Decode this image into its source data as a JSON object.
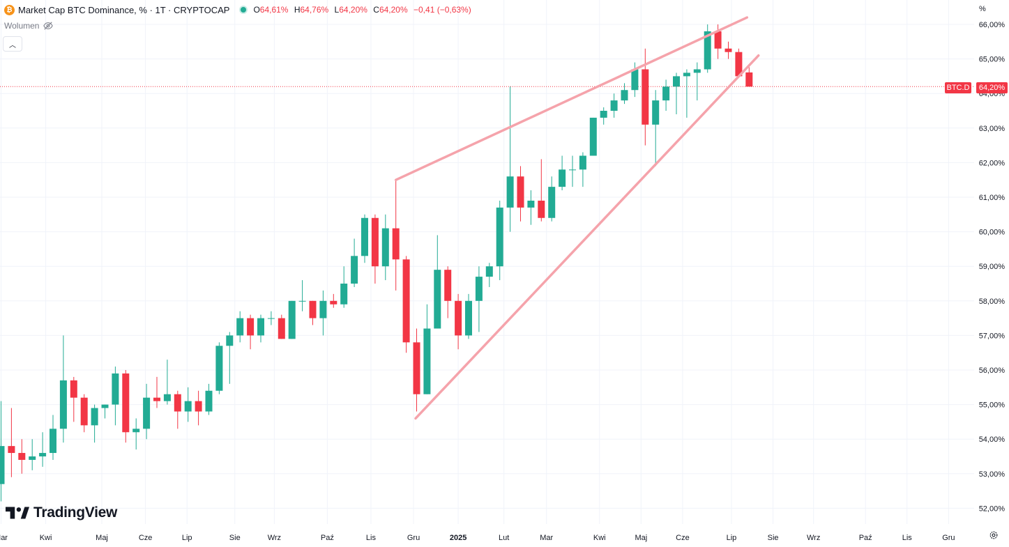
{
  "legend": {
    "symbol_icon": "bitcoin-coin-icon",
    "title": "Market Cap BTC Dominance, % · 1T · CRYPTOCAP",
    "open_key": "O",
    "open": "64,61%",
    "high_key": "H",
    "high": "64,76%",
    "low_key": "L",
    "low": "64,20%",
    "close_key": "C",
    "close": "64,20%",
    "change": "−0,41 (−0,63%)"
  },
  "volume_label": "Wolumen",
  "unit_label": "%",
  "brand": "TradingView",
  "price_tag": {
    "symbol": "BTC.D",
    "value": "64,20%"
  },
  "colors": {
    "up": "#22ab94",
    "down": "#f23645",
    "trendline": "#f5a3ab",
    "grid": "#f0f3fa",
    "axis_text": "#131722"
  },
  "chart_data": {
    "type": "candlestick",
    "title": "Market Cap BTC Dominance, % · 1T · CRYPTOCAP",
    "interval": "1 week",
    "ylim": [
      51.8,
      66.2
    ],
    "y_ticks": [
      52,
      53,
      54,
      55,
      56,
      57,
      58,
      59,
      60,
      61,
      62,
      63,
      64,
      65,
      66
    ],
    "y_tick_labels": [
      "52,00%",
      "53,00%",
      "54,00%",
      "55,00%",
      "56,00%",
      "57,00%",
      "58,00%",
      "59,00%",
      "60,00%",
      "61,00%",
      "62,00%",
      "63,00%",
      "64,00%",
      "65,00%",
      "66,00%"
    ],
    "x_ticks": [
      {
        "label": "Mar",
        "i": 0
      },
      {
        "label": "Kwi",
        "i": 4.3
      },
      {
        "label": "Maj",
        "i": 9.7
      },
      {
        "label": "Cze",
        "i": 13.9
      },
      {
        "label": "Lip",
        "i": 17.9
      },
      {
        "label": "Sie",
        "i": 22.5
      },
      {
        "label": "Wrz",
        "i": 26.3
      },
      {
        "label": "Paź",
        "i": 31.4
      },
      {
        "label": "Lis",
        "i": 35.6
      },
      {
        "label": "Gru",
        "i": 39.7
      },
      {
        "label": "2025",
        "i": 44
      },
      {
        "label": "Lut",
        "i": 48.4
      },
      {
        "label": "Mar",
        "i": 52.5
      },
      {
        "label": "Kwi",
        "i": 57.6
      },
      {
        "label": "Maj",
        "i": 61.6
      },
      {
        "label": "Cze",
        "i": 65.6
      },
      {
        "label": "Lip",
        "i": 70.3
      },
      {
        "label": "Sie",
        "i": 74.3
      },
      {
        "label": "Wrz",
        "i": 78.2
      },
      {
        "label": "Paź",
        "i": 83.2
      },
      {
        "label": "Lis",
        "i": 87.2
      },
      {
        "label": "Gru",
        "i": 91.2
      }
    ],
    "candles": [
      {
        "o": 52.7,
        "h": 55.1,
        "l": 52.2,
        "c": 53.8
      },
      {
        "o": 53.8,
        "h": 54.9,
        "l": 52.9,
        "c": 53.6
      },
      {
        "o": 53.6,
        "h": 54.0,
        "l": 53.0,
        "c": 53.4
      },
      {
        "o": 53.4,
        "h": 54.0,
        "l": 53.1,
        "c": 53.5
      },
      {
        "o": 53.5,
        "h": 54.2,
        "l": 53.2,
        "c": 53.6
      },
      {
        "o": 53.6,
        "h": 54.7,
        "l": 53.4,
        "c": 54.3
      },
      {
        "o": 54.3,
        "h": 57.0,
        "l": 53.9,
        "c": 55.7
      },
      {
        "o": 55.7,
        "h": 55.8,
        "l": 54.5,
        "c": 55.2
      },
      {
        "o": 55.2,
        "h": 55.3,
        "l": 54.2,
        "c": 54.4
      },
      {
        "o": 54.4,
        "h": 55.0,
        "l": 53.9,
        "c": 54.9
      },
      {
        "o": 54.9,
        "h": 55.0,
        "l": 54.6,
        "c": 55.0
      },
      {
        "o": 55.0,
        "h": 56.1,
        "l": 54.4,
        "c": 55.9
      },
      {
        "o": 55.9,
        "h": 56.0,
        "l": 53.9,
        "c": 54.2
      },
      {
        "o": 54.2,
        "h": 54.6,
        "l": 53.7,
        "c": 54.3
      },
      {
        "o": 54.3,
        "h": 55.6,
        "l": 54.0,
        "c": 55.2
      },
      {
        "o": 55.2,
        "h": 55.8,
        "l": 54.9,
        "c": 55.1
      },
      {
        "o": 55.1,
        "h": 56.3,
        "l": 55.0,
        "c": 55.3
      },
      {
        "o": 55.3,
        "h": 55.4,
        "l": 54.3,
        "c": 54.8
      },
      {
        "o": 54.8,
        "h": 55.5,
        "l": 54.5,
        "c": 55.1
      },
      {
        "o": 55.1,
        "h": 55.4,
        "l": 54.4,
        "c": 54.8
      },
      {
        "o": 54.8,
        "h": 55.6,
        "l": 54.7,
        "c": 55.4
      },
      {
        "o": 55.4,
        "h": 56.8,
        "l": 55.3,
        "c": 56.7
      },
      {
        "o": 56.7,
        "h": 57.1,
        "l": 55.6,
        "c": 57.0
      },
      {
        "o": 57.0,
        "h": 57.7,
        "l": 56.8,
        "c": 57.5
      },
      {
        "o": 57.5,
        "h": 57.6,
        "l": 56.6,
        "c": 57.0
      },
      {
        "o": 57.0,
        "h": 57.6,
        "l": 56.8,
        "c": 57.5
      },
      {
        "o": 57.5,
        "h": 57.7,
        "l": 57.3,
        "c": 57.5
      },
      {
        "o": 57.5,
        "h": 57.6,
        "l": 56.9,
        "c": 56.9
      },
      {
        "o": 56.9,
        "h": 58.0,
        "l": 56.9,
        "c": 58.0
      },
      {
        "o": 58.0,
        "h": 58.6,
        "l": 57.7,
        "c": 58.0
      },
      {
        "o": 58.0,
        "h": 58.0,
        "l": 57.3,
        "c": 57.5
      },
      {
        "o": 57.5,
        "h": 58.3,
        "l": 57.0,
        "c": 58.0
      },
      {
        "o": 58.0,
        "h": 58.2,
        "l": 57.8,
        "c": 57.9
      },
      {
        "o": 57.9,
        "h": 59.0,
        "l": 57.8,
        "c": 58.5
      },
      {
        "o": 58.5,
        "h": 59.8,
        "l": 58.4,
        "c": 59.3
      },
      {
        "o": 59.3,
        "h": 60.5,
        "l": 59.1,
        "c": 60.4
      },
      {
        "o": 60.4,
        "h": 60.5,
        "l": 58.5,
        "c": 59.0
      },
      {
        "o": 59.0,
        "h": 60.5,
        "l": 58.6,
        "c": 60.1
      },
      {
        "o": 60.1,
        "h": 61.5,
        "l": 58.3,
        "c": 59.2
      },
      {
        "o": 59.2,
        "h": 59.3,
        "l": 56.5,
        "c": 56.8
      },
      {
        "o": 56.8,
        "h": 57.2,
        "l": 54.8,
        "c": 55.3
      },
      {
        "o": 55.3,
        "h": 57.9,
        "l": 55.3,
        "c": 57.2
      },
      {
        "o": 57.2,
        "h": 59.9,
        "l": 57.2,
        "c": 58.9
      },
      {
        "o": 58.9,
        "h": 59.0,
        "l": 57.5,
        "c": 58.0
      },
      {
        "o": 58.0,
        "h": 58.2,
        "l": 56.6,
        "c": 57.0
      },
      {
        "o": 57.0,
        "h": 58.2,
        "l": 56.9,
        "c": 58.0
      },
      {
        "o": 58.0,
        "h": 59.0,
        "l": 57.1,
        "c": 58.7
      },
      {
        "o": 58.7,
        "h": 59.1,
        "l": 58.4,
        "c": 59.0
      },
      {
        "o": 59.0,
        "h": 60.9,
        "l": 58.6,
        "c": 60.7
      },
      {
        "o": 60.7,
        "h": 64.2,
        "l": 60.0,
        "c": 61.6
      },
      {
        "o": 61.6,
        "h": 61.9,
        "l": 60.3,
        "c": 60.7
      },
      {
        "o": 60.7,
        "h": 61.2,
        "l": 60.2,
        "c": 60.9
      },
      {
        "o": 60.9,
        "h": 62.1,
        "l": 60.3,
        "c": 60.4
      },
      {
        "o": 60.4,
        "h": 61.6,
        "l": 60.3,
        "c": 61.3
      },
      {
        "o": 61.3,
        "h": 62.2,
        "l": 61.2,
        "c": 61.8
      },
      {
        "o": 61.8,
        "h": 62.2,
        "l": 61.3,
        "c": 61.8
      },
      {
        "o": 61.8,
        "h": 62.3,
        "l": 61.3,
        "c": 62.2
      },
      {
        "o": 62.2,
        "h": 63.3,
        "l": 62.2,
        "c": 63.3
      },
      {
        "o": 63.3,
        "h": 63.6,
        "l": 63.1,
        "c": 63.5
      },
      {
        "o": 63.5,
        "h": 64.0,
        "l": 63.3,
        "c": 63.8
      },
      {
        "o": 63.8,
        "h": 64.3,
        "l": 63.7,
        "c": 64.1
      },
      {
        "o": 64.1,
        "h": 64.9,
        "l": 63.9,
        "c": 64.7
      },
      {
        "o": 64.7,
        "h": 65.3,
        "l": 62.5,
        "c": 63.1
      },
      {
        "o": 63.1,
        "h": 64.1,
        "l": 61.9,
        "c": 63.8
      },
      {
        "o": 63.8,
        "h": 64.4,
        "l": 63.5,
        "c": 64.2
      },
      {
        "o": 64.2,
        "h": 64.6,
        "l": 63.4,
        "c": 64.5
      },
      {
        "o": 64.5,
        "h": 64.7,
        "l": 63.3,
        "c": 64.6
      },
      {
        "o": 64.6,
        "h": 64.9,
        "l": 63.8,
        "c": 64.7
      },
      {
        "o": 64.7,
        "h": 66.0,
        "l": 64.6,
        "c": 65.8
      },
      {
        "o": 65.8,
        "h": 66.0,
        "l": 65.0,
        "c": 65.3
      },
      {
        "o": 65.3,
        "h": 65.5,
        "l": 65.0,
        "c": 65.2
      },
      {
        "o": 65.2,
        "h": 65.3,
        "l": 64.6,
        "c": 64.5
      },
      {
        "o": 64.61,
        "h": 64.76,
        "l": 64.2,
        "c": 64.2
      }
    ],
    "trendlines": [
      {
        "from": {
          "i": 38,
          "v": 61.5
        },
        "to": {
          "i": 71.8,
          "v": 66.2
        }
      },
      {
        "from": {
          "i": 39.9,
          "v": 54.6
        },
        "to": {
          "i": 72.9,
          "v": 65.1
        }
      }
    ],
    "current_price": 64.2
  }
}
